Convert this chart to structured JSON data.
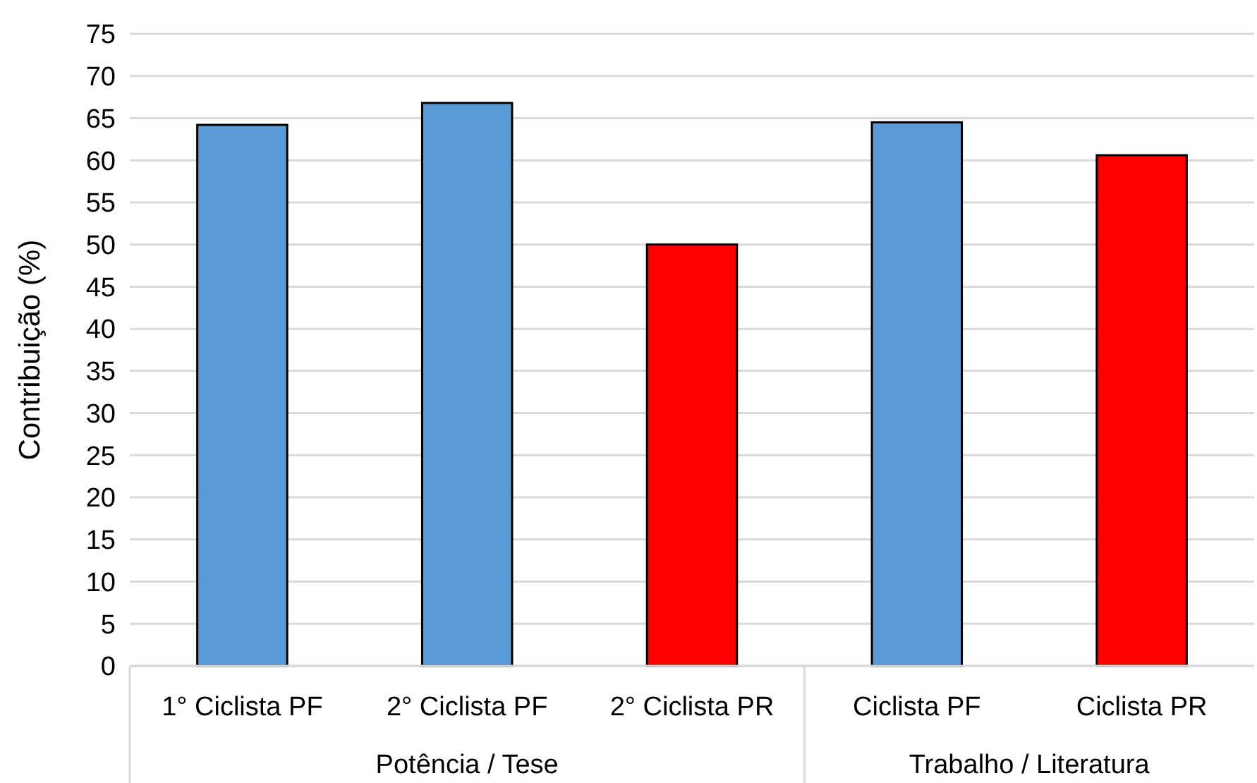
{
  "chart_data": {
    "type": "bar",
    "ylabel": "Contribuição (%)",
    "categories": [
      "1° Ciclista PF",
      "2° Ciclista PF",
      "2° Ciclista PR",
      "Ciclista PF",
      "Ciclista PR"
    ],
    "values": [
      64.2,
      66.8,
      50,
      64.5,
      60.6
    ],
    "colors": [
      "#5b9bd5",
      "#5b9bd5",
      "#ff0000",
      "#5b9bd5",
      "#ff0000"
    ],
    "ylim": [
      0,
      75
    ],
    "yticks": [
      0,
      5,
      10,
      15,
      20,
      25,
      30,
      35,
      40,
      45,
      50,
      55,
      60,
      65,
      70,
      75
    ],
    "grid": "y",
    "annotations": [
      "Potência / Tese",
      "Trabalho / Literatura"
    ]
  }
}
